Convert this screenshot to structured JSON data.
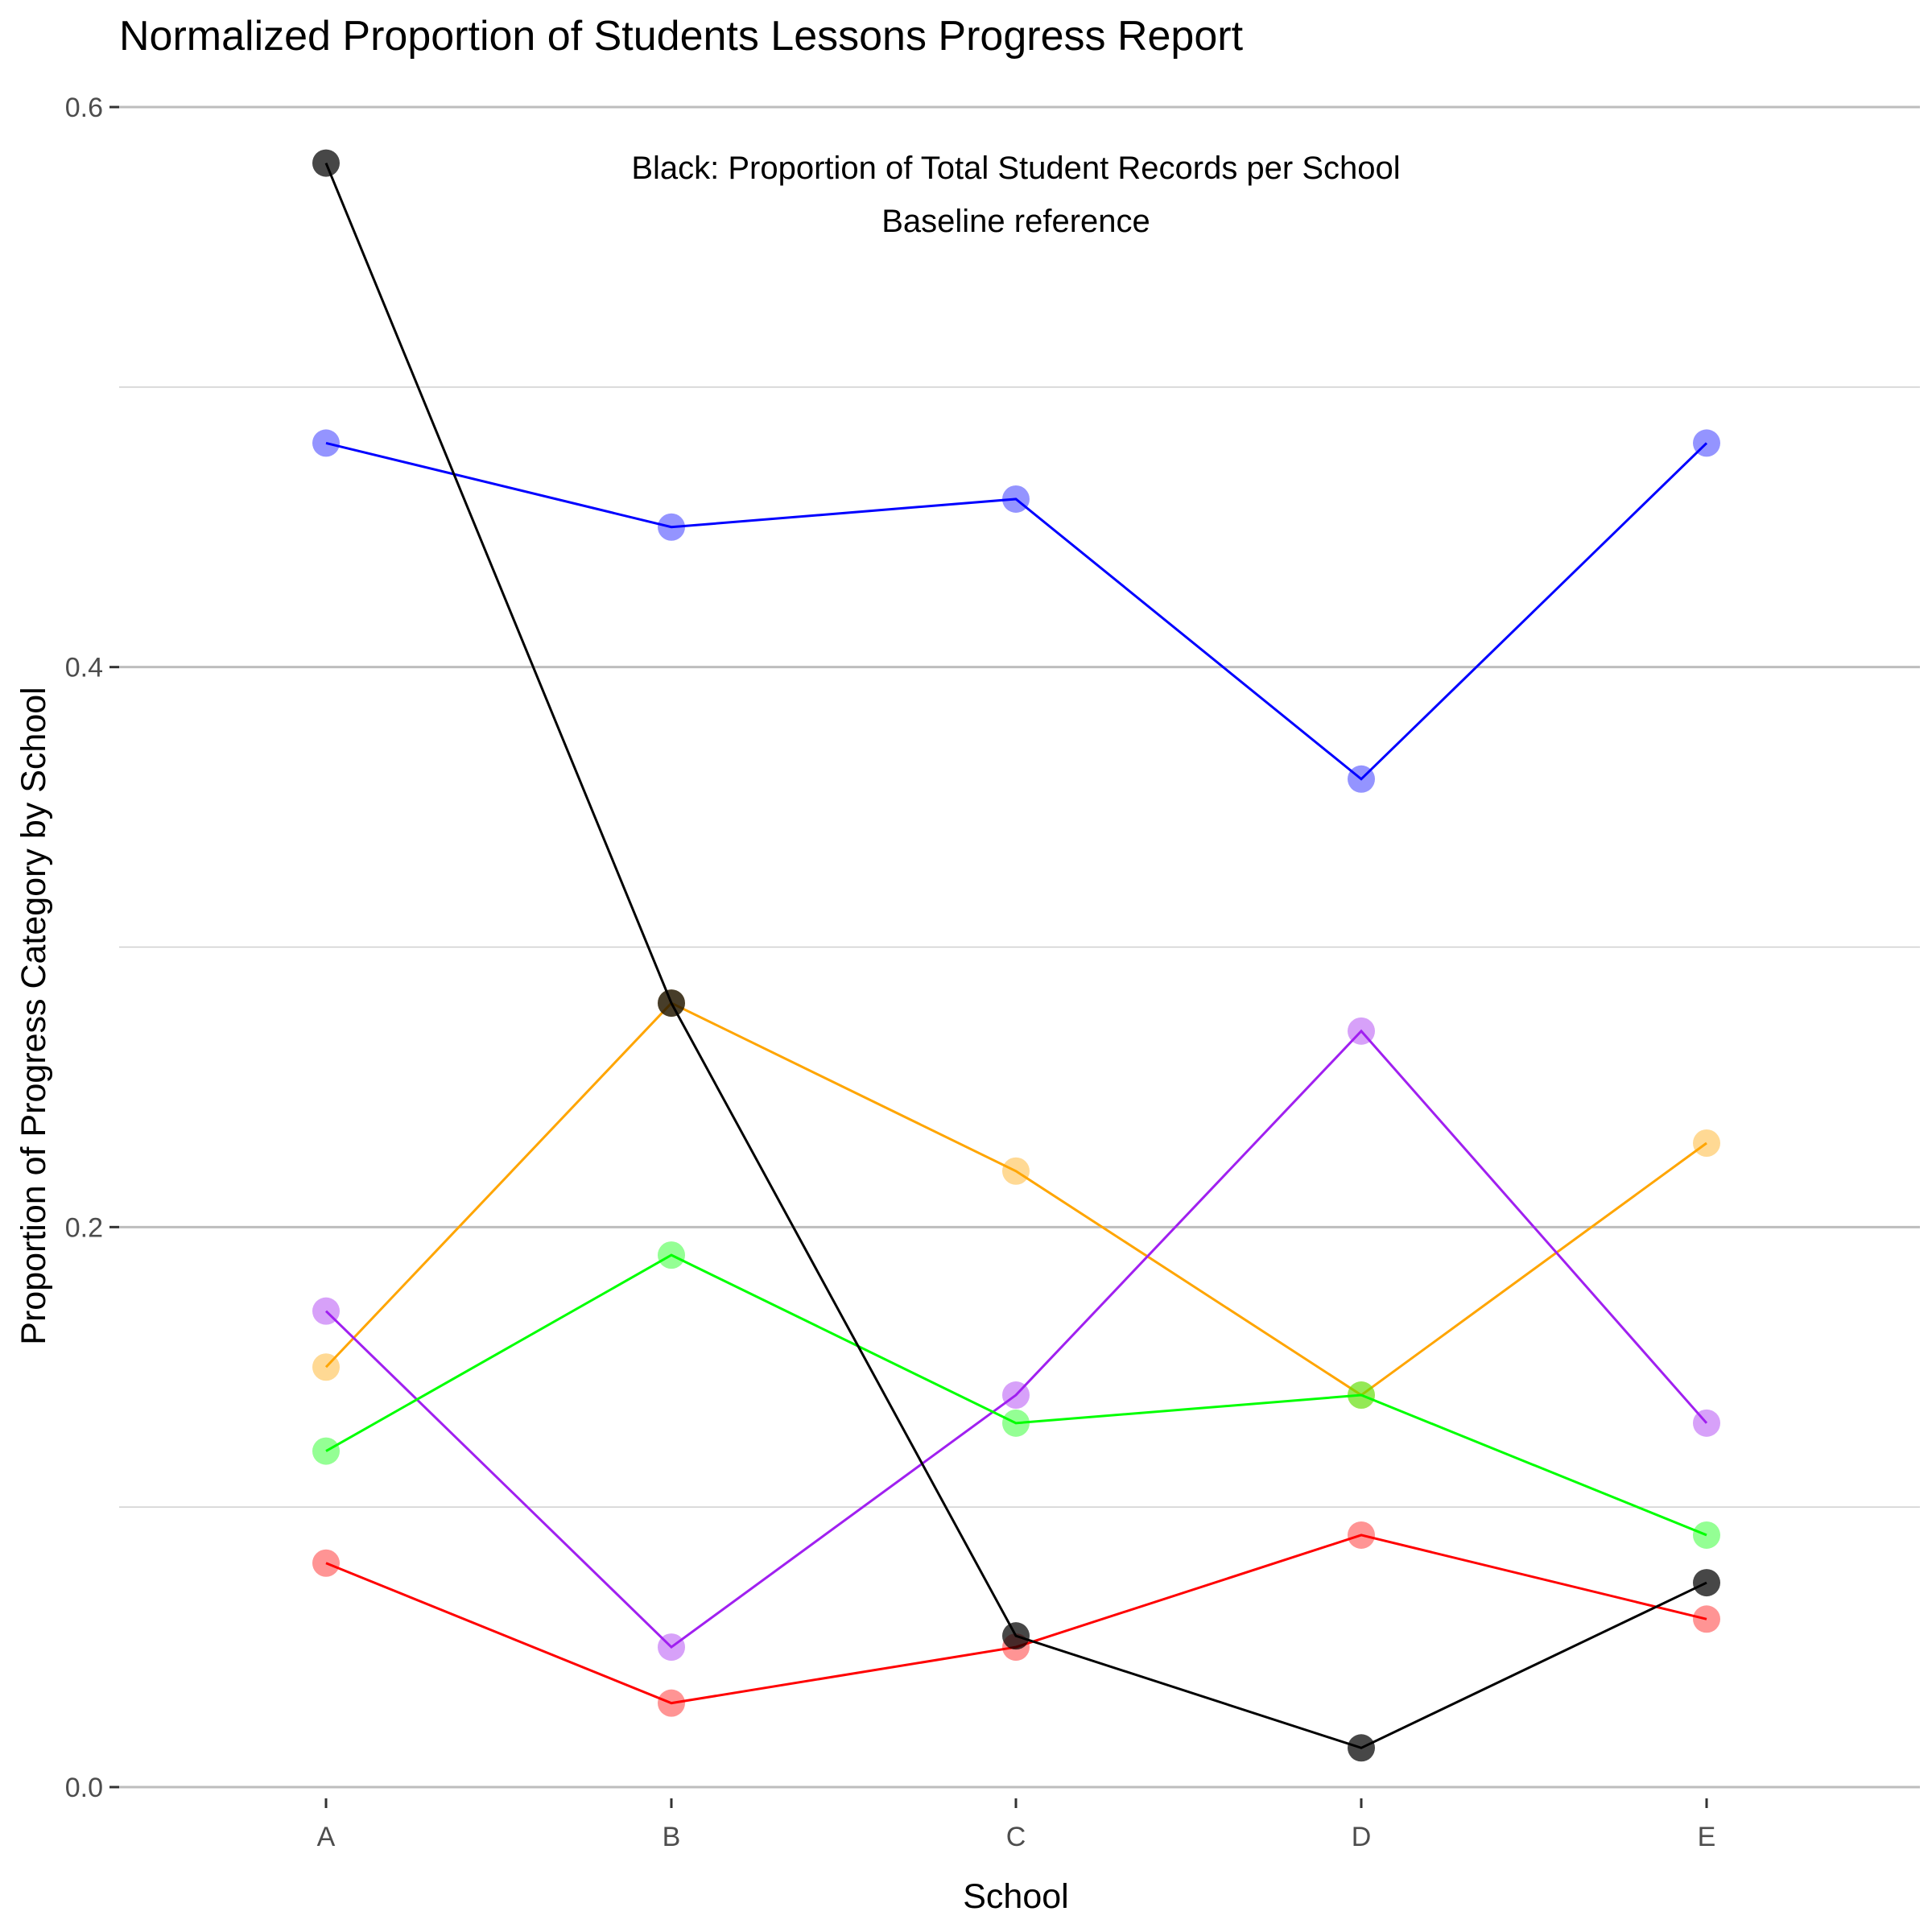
{
  "chart_data": {
    "type": "line",
    "title": "Normalized Proportion of Students Lessons Progress Report",
    "xlabel": "School",
    "ylabel": "Proportion of Progress Category by School",
    "categories": [
      "A",
      "B",
      "C",
      "D",
      "E"
    ],
    "ylim": [
      0.0,
      0.6
    ],
    "y_ticks": [
      0.0,
      0.2,
      0.4,
      0.6
    ],
    "y_tick_labels": [
      "0.0",
      "0.2",
      "0.4",
      "0.6"
    ],
    "grid": true,
    "legend": "none",
    "annotation": {
      "line1": "Black: Proportion of Total Student Records per School",
      "line2": "Baseline reference"
    },
    "series": [
      {
        "color": "#0000ff",
        "values": [
          0.48,
          0.45,
          0.46,
          0.36,
          0.48
        ]
      },
      {
        "color": "#ffa500",
        "values": [
          0.15,
          0.28,
          0.22,
          0.14,
          0.23
        ]
      },
      {
        "color": "#a020f0",
        "values": [
          0.17,
          0.05,
          0.14,
          0.27,
          0.13
        ]
      },
      {
        "color": "#00ff00",
        "values": [
          0.12,
          0.19,
          0.13,
          0.14,
          0.09
        ]
      },
      {
        "color": "#ff0000",
        "values": [
          0.08,
          0.03,
          0.05,
          0.09,
          0.06
        ]
      },
      {
        "color": "#000000",
        "values": [
          0.58,
          0.28,
          0.054,
          0.014,
          0.073
        ]
      }
    ]
  }
}
